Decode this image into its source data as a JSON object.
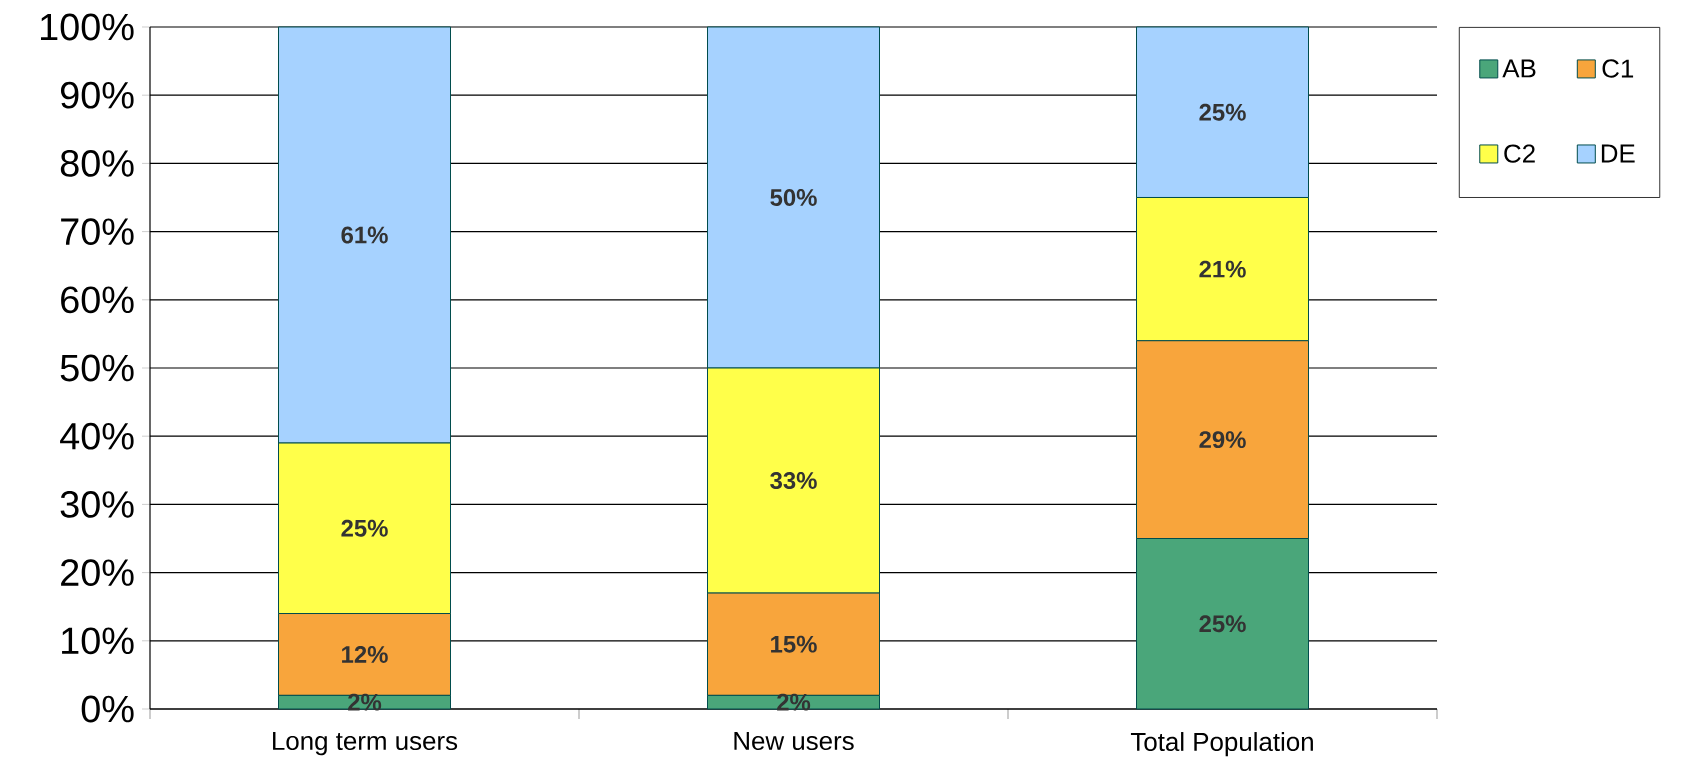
{
  "chart_data": {
    "type": "bar",
    "stacked": true,
    "categories": [
      "Long term users",
      "New users",
      "Total Population"
    ],
    "series": [
      {
        "name": "AB",
        "color": "#4aa67a",
        "values": [
          2,
          2,
          25
        ],
        "value_labels": [
          "2%",
          "2%",
          "25%"
        ]
      },
      {
        "name": "C1",
        "color": "#f8a53c",
        "values": [
          12,
          15,
          29
        ],
        "value_labels": [
          "12%",
          "15%",
          "29%"
        ]
      },
      {
        "name": "C2",
        "color": "#ffff4a",
        "values": [
          25,
          33,
          21
        ],
        "value_labels": [
          "25%",
          "33%",
          "21%"
        ]
      },
      {
        "name": "DE",
        "color": "#a6d2ff",
        "values": [
          61,
          50,
          25
        ],
        "value_labels": [
          "61%",
          "50%",
          "25%"
        ]
      }
    ],
    "ylim": [
      0,
      100
    ],
    "yticks": [
      {
        "value": 0,
        "label": "0%"
      },
      {
        "value": 10,
        "label": "10%"
      },
      {
        "value": 20,
        "label": "20%"
      },
      {
        "value": 30,
        "label": "30%"
      },
      {
        "value": 40,
        "label": "40%"
      },
      {
        "value": 50,
        "label": "50%"
      },
      {
        "value": 60,
        "label": "60%"
      },
      {
        "value": 70,
        "label": "70%"
      },
      {
        "value": 80,
        "label": "80%"
      },
      {
        "value": 90,
        "label": "90%"
      },
      {
        "value": 100,
        "label": "100%"
      }
    ],
    "grid": "y",
    "legend": "top right"
  }
}
